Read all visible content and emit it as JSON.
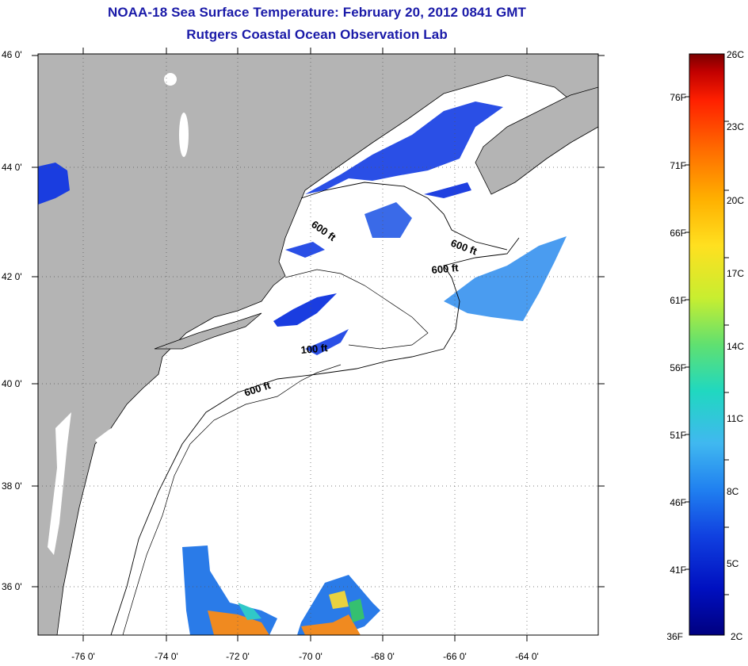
{
  "title_line1": "NOAA-18 Sea Surface Temperature:  February 20, 2012 0841 GMT",
  "title_line2": "Rutgers Coastal Ocean Observation Lab",
  "map": {
    "lat_labels": [
      "46 0'",
      "44 0'",
      "42 0'",
      "40 0'",
      "38 0'",
      "36 0'"
    ],
    "lon_labels": [
      "-76 0'",
      "-74 0'",
      "-72 0'",
      "-70 0'",
      "-68 0'",
      "-66 0'",
      "-64 0'"
    ],
    "contour_labels": [
      "600 ft",
      "600 ft",
      "600 ft",
      "100 ft",
      "600 ft"
    ],
    "land_color": "#b4b4b4",
    "ocean_color": "#ffffff"
  },
  "colorbar": {
    "celsius_labels": [
      "26C",
      "23C",
      "20C",
      "17C",
      "14C",
      "11C",
      "8C",
      "5C",
      "2C"
    ],
    "fahrenheit_labels": [
      "76F",
      "71F",
      "66F",
      "61F",
      "56F",
      "51F",
      "46F",
      "41F",
      "36F"
    ],
    "colors": [
      "#7a0000",
      "#c00000",
      "#ff2000",
      "#ff7000",
      "#ffb000",
      "#ffe020",
      "#c8ee30",
      "#60e070",
      "#20d8c0",
      "#40b8f0",
      "#2080f0",
      "#1040e0",
      "#0010c0",
      "#000080"
    ]
  }
}
